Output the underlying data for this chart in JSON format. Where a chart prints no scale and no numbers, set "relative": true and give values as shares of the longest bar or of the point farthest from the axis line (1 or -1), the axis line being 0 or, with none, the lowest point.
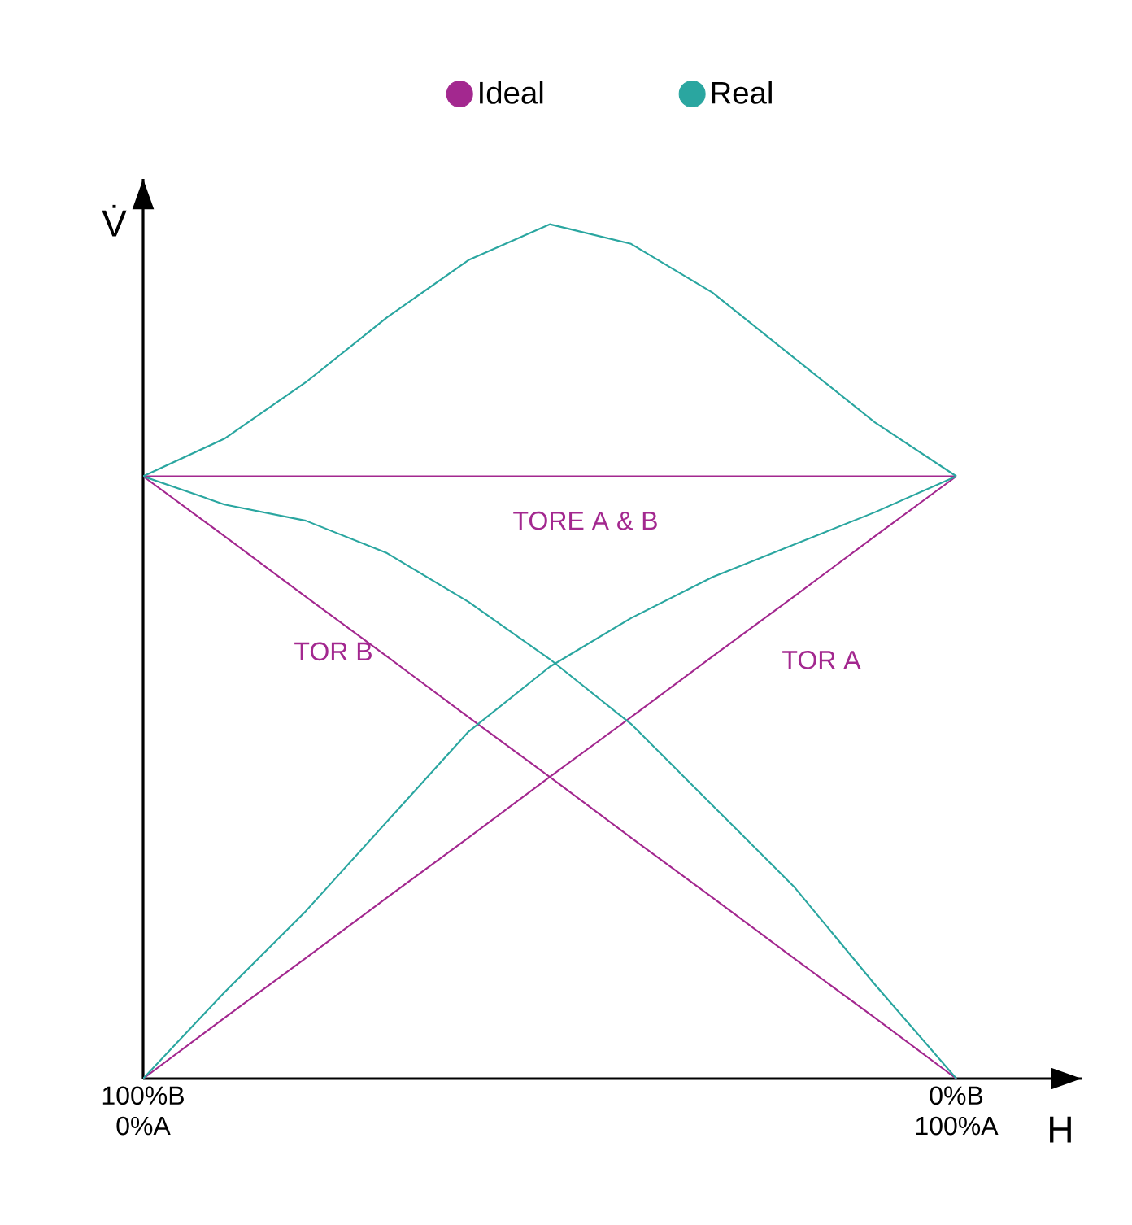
{
  "chart_data": {
    "type": "line",
    "relative": true,
    "xlabel": "H",
    "ylabel": "V̇",
    "legend": "top",
    "categories": [
      "100%B 0%A",
      null,
      null,
      null,
      null,
      null,
      null,
      null,
      null,
      null,
      "0%B 100%A"
    ],
    "series": [
      {
        "name": "Ideal",
        "color": "#a3288f",
        "values": [
          0.705,
          0.705,
          0.705,
          0.705,
          0.705,
          0.705,
          0.705,
          0.705,
          0.705,
          0.705,
          0.705
        ]
      },
      {
        "color": "#a3288f",
        "values": [
          0,
          0.071,
          0.141,
          0.212,
          0.282,
          0.353,
          0.423,
          0.494,
          0.564,
          0.635,
          0.705
        ]
      },
      {
        "color": "#a3288f",
        "values": [
          0.705,
          0.635,
          0.564,
          0.494,
          0.423,
          0.353,
          0.282,
          0.212,
          0.141,
          0.071,
          0
        ]
      },
      {
        "name": "Real",
        "color": "#2aa6a0",
        "values": [
          0.705,
          0.749,
          0.815,
          0.891,
          0.958,
          1,
          0.977,
          0.92,
          0.844,
          0.768,
          0.705
        ]
      },
      {
        "color": "#2aa6a0",
        "values": [
          0,
          0.101,
          0.196,
          0.301,
          0.406,
          0.482,
          0.539,
          0.587,
          0.625,
          0.663,
          0.705
        ]
      },
      {
        "color": "#2aa6a0",
        "values": [
          0.705,
          0.672,
          0.653,
          0.615,
          0.558,
          0.491,
          0.415,
          0.32,
          0.225,
          0.11,
          0
        ]
      }
    ],
    "annotations": [
      "TORE A & B",
      "TOR B",
      "TOR A"
    ]
  }
}
